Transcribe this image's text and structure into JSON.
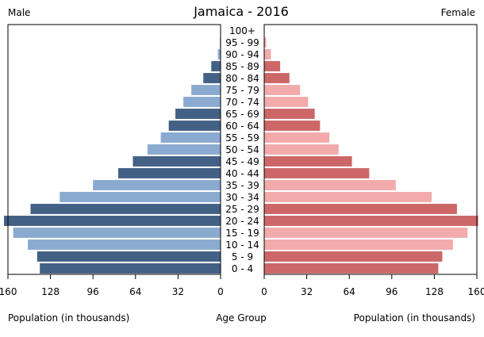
{
  "chart_data": {
    "type": "bar",
    "title": "Jamaica - 2016",
    "left_label": "Male",
    "right_label": "Female",
    "center_xlabel": "Age Group",
    "left_xlabel": "Population (in thousands)",
    "right_xlabel": "Population (in thousands)",
    "xlim": [
      0,
      160
    ],
    "left_ticks": [
      "160",
      "128",
      "96",
      "64",
      "32",
      "0"
    ],
    "right_ticks": [
      "0",
      "32",
      "64",
      "96",
      "128",
      "160"
    ],
    "tick_values": [
      0,
      32,
      64,
      96,
      128,
      160
    ],
    "categories": [
      "0 - 4",
      "5 - 9",
      "10 - 14",
      "15 - 19",
      "20 - 24",
      "25 - 29",
      "30 - 34",
      "35 - 39",
      "40 - 44",
      "45 - 49",
      "50 - 54",
      "55 - 59",
      "60 - 64",
      "65 - 69",
      "70 - 74",
      "75 - 79",
      "80 - 84",
      "85 - 89",
      "90 - 94",
      "95 - 99",
      "100+"
    ],
    "series": [
      {
        "name": "Male",
        "values": [
          136,
          138,
          145,
          156,
          163,
          143,
          121,
          96,
          77,
          66,
          55,
          45,
          39,
          34,
          28,
          22,
          13,
          7,
          2,
          0.5,
          0.1
        ]
      },
      {
        "name": "Female",
        "values": [
          131,
          134,
          142,
          153,
          161,
          145,
          126,
          99,
          79,
          66,
          56,
          49,
          42,
          38,
          33,
          27,
          19,
          12,
          5,
          1.5,
          0.2
        ]
      }
    ],
    "colors": {
      "male_dark": "#436085",
      "male_light": "#8aaad0",
      "female_dark": "#cd6767",
      "female_light": "#f2aaaa",
      "frame": "#000000"
    }
  }
}
